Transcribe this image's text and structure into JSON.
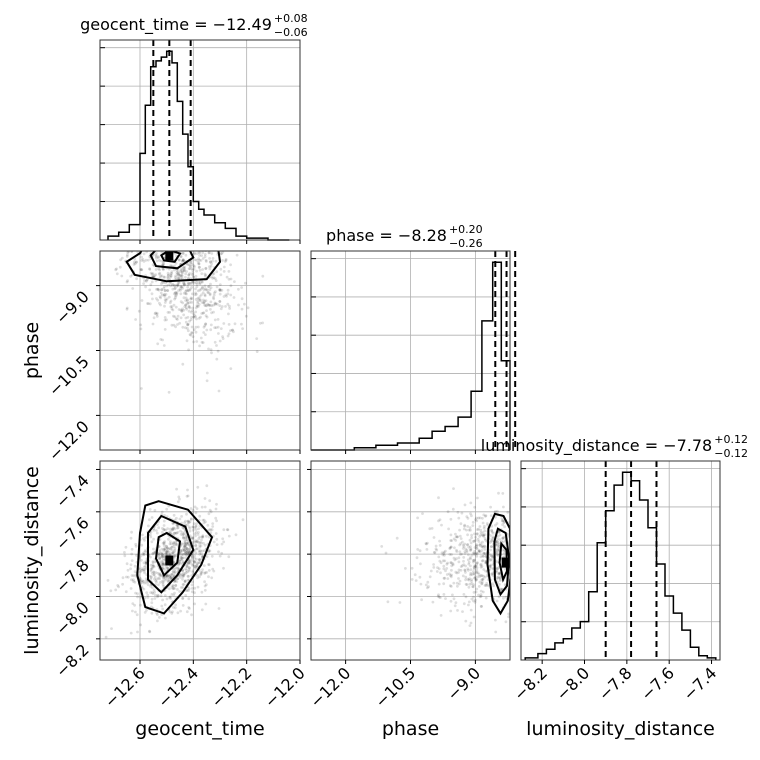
{
  "chart_data": {
    "type": "corner",
    "parameters": [
      {
        "name": "geocent_time",
        "range": [
          -12.75,
          -12.0
        ],
        "ticks": [
          -12.6,
          -12.4,
          -12.2,
          -12.0
        ],
        "tick_labels": [
          "−12.6",
          "−12.4",
          "−12.2",
          "−12.0"
        ]
      },
      {
        "name": "phase",
        "range": [
          -12.8,
          -8.2
        ],
        "ticks": [
          -12.0,
          -10.5,
          -9.0
        ],
        "tick_labels": [
          "−12.0",
          "−10.5",
          "−9.0"
        ]
      },
      {
        "name": "luminosity_distance",
        "range": [
          -8.3,
          -7.36
        ],
        "ticks": [
          -8.2,
          -8.0,
          -7.8,
          -7.6,
          -7.4
        ],
        "tick_labels": [
          "−8.2",
          "−8.0",
          "−7.8",
          "−7.6",
          "−7.4"
        ]
      }
    ],
    "titles": [
      {
        "param": "geocent_time",
        "prefix": "geocent_time = −12.49",
        "sup": "+0.08",
        "sub": "−0.06"
      },
      {
        "param": "phase",
        "prefix": "phase = −8.28",
        "sup": "+0.20",
        "sub": "−0.26"
      },
      {
        "param": "luminosity_distance",
        "prefix": "luminosity_distance = −7.78",
        "sup": "+0.12",
        "sub": "−0.12"
      }
    ],
    "histograms": [
      {
        "param": "geocent_time",
        "bin_edges": [
          -12.72,
          -12.68,
          -12.64,
          -12.6,
          -12.58,
          -12.56,
          -12.54,
          -12.52,
          -12.5,
          -12.48,
          -12.46,
          -12.44,
          -12.42,
          -12.4,
          -12.38,
          -12.36,
          -12.32,
          -12.28,
          -12.24,
          -12.2,
          -12.16,
          -12.12,
          -12.08,
          -12.04
        ],
        "counts": [
          2,
          4,
          8,
          45,
          70,
          90,
          93,
          95,
          98,
          92,
          72,
          55,
          38,
          20,
          16,
          13,
          9,
          6,
          2,
          1,
          1,
          0,
          0
        ],
        "quantiles": [
          -12.55,
          -12.49,
          -12.41
        ]
      },
      {
        "param": "phase",
        "bin_edges": [
          -12.8,
          -11.8,
          -11.3,
          -10.8,
          -10.3,
          -10.0,
          -9.7,
          -9.4,
          -9.1,
          -8.85,
          -8.6,
          -8.4,
          -8.2
        ],
        "counts": [
          0,
          1,
          2,
          3,
          5,
          8,
          10,
          14,
          25,
          55,
          80,
          38
        ],
        "quantiles": [
          -8.54,
          -8.28,
          -8.08
        ]
      },
      {
        "param": "luminosity_distance",
        "bin_edges": [
          -8.28,
          -8.22,
          -8.18,
          -8.14,
          -8.1,
          -8.06,
          -8.02,
          -7.98,
          -7.94,
          -7.9,
          -7.86,
          -7.82,
          -7.78,
          -7.74,
          -7.7,
          -7.66,
          -7.62,
          -7.58,
          -7.54,
          -7.5,
          -7.46,
          -7.42,
          -7.38
        ],
        "counts": [
          1,
          3,
          5,
          8,
          10,
          15,
          18,
          32,
          55,
          70,
          82,
          88,
          84,
          75,
          62,
          45,
          30,
          22,
          14,
          6,
          2,
          1
        ],
        "quantiles": [
          -7.9,
          -7.78,
          -7.66
        ]
      }
    ],
    "joint_panels": [
      {
        "x": "geocent_time",
        "y": "phase",
        "peak": [
          -12.49,
          -8.3
        ],
        "contours": [
          [
            [
              -12.6,
              -8.25
            ],
            [
              -12.57,
              -7.95
            ],
            [
              -12.4,
              -7.85
            ],
            [
              -12.31,
              -8.0
            ],
            [
              -12.3,
              -8.45
            ],
            [
              -12.35,
              -8.85
            ],
            [
              -12.5,
              -8.9
            ],
            [
              -12.62,
              -8.75
            ],
            [
              -12.65,
              -8.45
            ]
          ],
          [
            [
              -12.56,
              -8.3
            ],
            [
              -12.52,
              -8.05
            ],
            [
              -12.42,
              -8.1
            ],
            [
              -12.4,
              -8.35
            ],
            [
              -12.46,
              -8.6
            ],
            [
              -12.54,
              -8.55
            ]
          ],
          [
            [
              -12.52,
              -8.3
            ],
            [
              -12.49,
              -8.18
            ],
            [
              -12.45,
              -8.26
            ],
            [
              -12.47,
              -8.45
            ],
            [
              -12.51,
              -8.42
            ]
          ]
        ]
      },
      {
        "x": "geocent_time",
        "y": "luminosity_distance",
        "peak": [
          -12.49,
          -7.83
        ],
        "contours": [
          [
            [
              -12.53,
              -7.55
            ],
            [
              -12.42,
              -7.59
            ],
            [
              -12.33,
              -7.72
            ],
            [
              -12.37,
              -7.85
            ],
            [
              -12.44,
              -7.98
            ],
            [
              -12.51,
              -8.08
            ],
            [
              -12.58,
              -8.05
            ],
            [
              -12.61,
              -7.9
            ],
            [
              -12.6,
              -7.7
            ],
            [
              -12.58,
              -7.57
            ]
          ],
          [
            [
              -12.52,
              -7.62
            ],
            [
              -12.43,
              -7.67
            ],
            [
              -12.4,
              -7.78
            ],
            [
              -12.46,
              -7.9
            ],
            [
              -12.52,
              -7.98
            ],
            [
              -12.57,
              -7.92
            ],
            [
              -12.57,
              -7.7
            ]
          ],
          [
            [
              -12.5,
              -7.7
            ],
            [
              -12.45,
              -7.74
            ],
            [
              -12.46,
              -7.84
            ],
            [
              -12.51,
              -7.9
            ],
            [
              -12.54,
              -7.82
            ],
            [
              -12.53,
              -7.72
            ]
          ]
        ]
      },
      {
        "x": "phase",
        "y": "luminosity_distance",
        "peak": [
          -8.3,
          -7.84
        ],
        "contours": [
          [
            [
              -8.55,
              -7.61
            ],
            [
              -8.35,
              -7.62
            ],
            [
              -8.2,
              -7.68
            ],
            [
              -8.18,
              -7.9
            ],
            [
              -8.25,
              -8.02
            ],
            [
              -8.42,
              -8.08
            ],
            [
              -8.6,
              -8.02
            ],
            [
              -8.72,
              -7.85
            ],
            [
              -8.7,
              -7.68
            ]
          ],
          [
            [
              -8.48,
              -7.68
            ],
            [
              -8.3,
              -7.7
            ],
            [
              -8.22,
              -7.82
            ],
            [
              -8.27,
              -7.95
            ],
            [
              -8.42,
              -7.99
            ],
            [
              -8.55,
              -7.92
            ],
            [
              -8.56,
              -7.74
            ]
          ],
          [
            [
              -8.4,
              -7.75
            ],
            [
              -8.28,
              -7.78
            ],
            [
              -8.27,
              -7.88
            ],
            [
              -8.36,
              -7.92
            ],
            [
              -8.44,
              -7.84
            ]
          ]
        ]
      }
    ],
    "grid": true
  }
}
